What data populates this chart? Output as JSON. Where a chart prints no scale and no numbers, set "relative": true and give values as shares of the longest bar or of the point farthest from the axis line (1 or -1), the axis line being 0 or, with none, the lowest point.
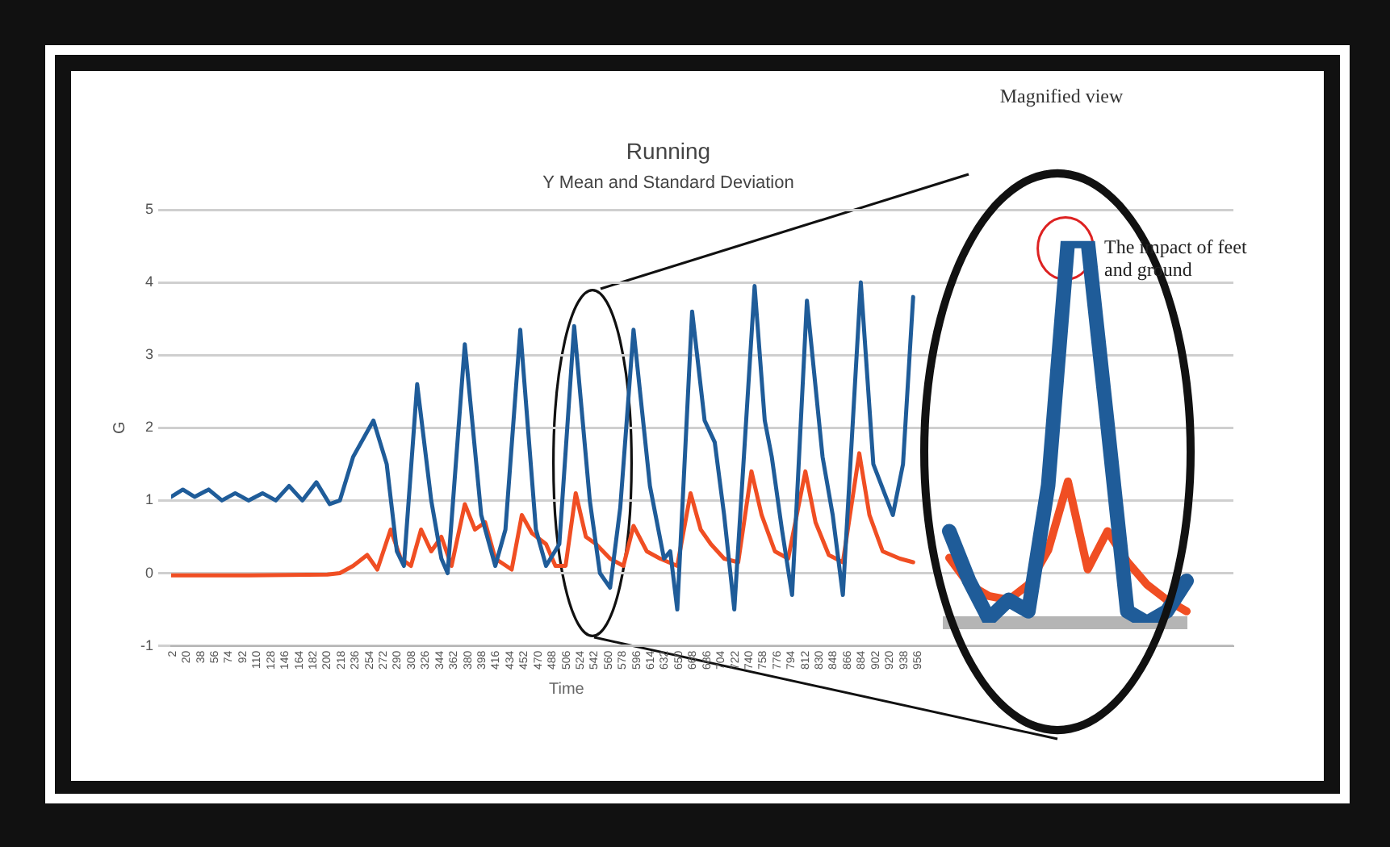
{
  "chart_data": [
    {
      "type": "line",
      "title": "Running",
      "subtitle": "Y Mean and Standard Deviation",
      "xlabel": "Time",
      "ylabel": "G",
      "xlim": [
        0,
        1360
      ],
      "xticks": [
        2,
        20,
        38,
        56,
        74,
        92,
        110,
        128,
        146,
        164,
        182,
        200,
        218,
        236,
        254,
        272,
        290,
        308,
        326,
        344,
        362,
        380,
        398,
        416,
        434,
        452,
        470,
        488,
        506,
        524,
        542,
        560,
        578,
        596,
        614,
        632,
        650,
        668,
        686,
        704,
        722,
        740,
        758,
        776,
        794,
        812,
        830,
        848,
        866,
        884,
        902,
        920,
        938,
        956
      ],
      "ylim": [
        -1,
        5
      ],
      "yticks": [
        -1,
        0,
        1,
        2,
        3,
        4,
        5
      ],
      "grid": "y",
      "marker": "none",
      "line_style": "solid",
      "series": [
        {
          "color": "#1f5c99",
          "x": [
            0,
            15,
            30,
            48,
            65,
            82,
            99,
            117,
            134,
            151,
            168,
            186,
            203,
            216,
            233,
            259,
            276,
            289,
            298,
            315,
            333,
            346,
            354,
            376,
            397,
            415,
            428,
            447,
            467,
            480,
            497,
            516,
            536,
            549,
            562,
            575,
            592,
            613,
            631,
            639,
            648,
            667,
            683,
            696,
            708,
            721,
            747,
            760,
            769,
            782,
            795,
            814,
            834,
            847,
            860,
            883,
            899,
            924,
            937,
            950
          ],
          "values": [
            1.05,
            1.15,
            1.05,
            1.15,
            1.0,
            1.1,
            1.0,
            1.1,
            1.0,
            1.2,
            1.0,
            1.25,
            0.95,
            1.0,
            1.6,
            2.1,
            1.5,
            0.3,
            0.1,
            2.6,
            1.0,
            0.2,
            0.0,
            3.15,
            0.8,
            0.1,
            0.6,
            3.35,
            0.6,
            0.1,
            0.4,
            3.4,
            1.0,
            0.0,
            -0.2,
            0.9,
            3.35,
            1.2,
            0.2,
            0.3,
            -0.5,
            3.6,
            2.1,
            1.8,
            0.8,
            -0.5,
            3.95,
            2.1,
            1.6,
            0.6,
            -0.3,
            3.75,
            1.6,
            0.8,
            -0.3,
            4.0,
            1.5,
            0.8,
            1.5,
            3.8
          ]
        },
        {
          "color": "#f04e23",
          "x": [
            0,
            100,
            200,
            216,
            233,
            251,
            264,
            281,
            294,
            307,
            320,
            333,
            346,
            359,
            376,
            389,
            402,
            415,
            436,
            449,
            462,
            480,
            492,
            505,
            518,
            531,
            544,
            562,
            579,
            592,
            609,
            626,
            648,
            665,
            678,
            691,
            708,
            726,
            743,
            756,
            773,
            790,
            812,
            825,
            842,
            860,
            881,
            894,
            911,
            933,
            950
          ],
          "values": [
            -0.03,
            -0.03,
            -0.02,
            0.0,
            0.1,
            0.25,
            0.05,
            0.6,
            0.2,
            0.1,
            0.6,
            0.3,
            0.5,
            0.1,
            0.95,
            0.6,
            0.7,
            0.2,
            0.05,
            0.8,
            0.55,
            0.4,
            0.1,
            0.1,
            1.1,
            0.5,
            0.4,
            0.2,
            0.1,
            0.65,
            0.3,
            0.2,
            0.1,
            1.1,
            0.6,
            0.4,
            0.2,
            0.15,
            1.4,
            0.8,
            0.3,
            0.2,
            1.4,
            0.7,
            0.25,
            0.15,
            1.65,
            0.8,
            0.3,
            0.2,
            0.15
          ]
        }
      ]
    },
    {
      "type": "line",
      "relative": true,
      "title": "Magnified view",
      "categories": [
        null,
        null,
        null,
        null,
        null,
        null,
        null,
        null,
        null,
        null,
        null,
        null,
        null
      ],
      "marker": "none",
      "line_style": "solid",
      "series": [
        {
          "color": "#1f5c99",
          "values": [
            0.24,
            0.11,
            0.01,
            0.06,
            0.03,
            0.36,
            1,
            1,
            0.52,
            0.03,
            0,
            0.03,
            0.11
          ]
        },
        {
          "color": "#f04e23",
          "values": [
            0.17,
            0.1,
            0.07,
            0.06,
            0.1,
            0.19,
            0.37,
            0.14,
            0.24,
            0.16,
            0.1,
            0.06,
            0.03
          ]
        }
      ],
      "annotations": [
        "The impact of feet and ground"
      ]
    }
  ]
}
